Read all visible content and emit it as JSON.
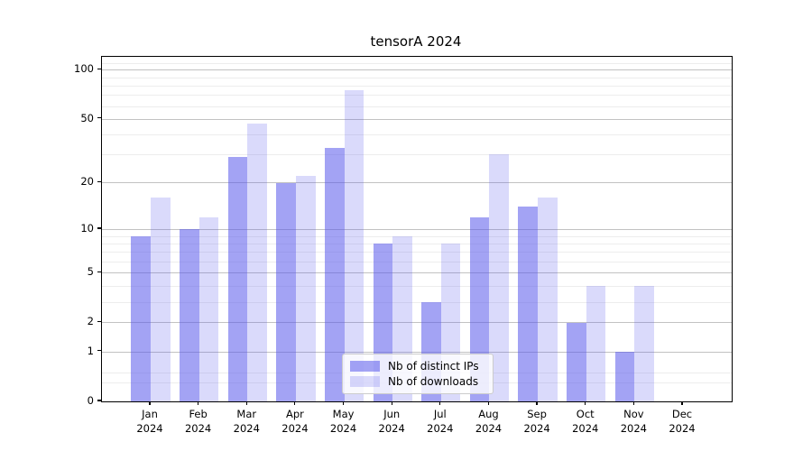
{
  "title": "tensorA 2024",
  "legend": {
    "items": [
      {
        "label": "Nb of distinct IPs",
        "color": "rgba(88,88,235,0.55)",
        "color_hex_on_white": "#a3a3f2"
      },
      {
        "label": "Nb of downloads",
        "color": "rgba(88,88,235,0.22)",
        "color_hex_on_white": "#d9d9f8"
      }
    ]
  },
  "chart_data": {
    "type": "bar",
    "title": "tensorA 2024",
    "categories": [
      "Jan",
      "Feb",
      "Mar",
      "Apr",
      "May",
      "Jun",
      "Jul",
      "Aug",
      "Sep",
      "Oct",
      "Nov",
      "Dec"
    ],
    "year_label": "2024",
    "series": [
      {
        "name": "Nb of distinct IPs",
        "color": "rgba(88,88,235,0.55)",
        "values": [
          9,
          10,
          29,
          20,
          33,
          8,
          3,
          12,
          14,
          2,
          1,
          0
        ]
      },
      {
        "name": "Nb of downloads",
        "color": "rgba(88,88,235,0.22)",
        "values": [
          16,
          12,
          47,
          22,
          75,
          9,
          8,
          30,
          16,
          4,
          4,
          0
        ]
      }
    ],
    "xlabel": "",
    "ylabel": "",
    "yscale": "log1p",
    "ylim": [
      0,
      120
    ],
    "y_major_ticks": [
      0,
      1,
      2,
      5,
      10,
      20,
      50,
      100
    ],
    "y_minor_ticks": [
      0.3,
      0.5,
      3,
      4,
      6,
      7,
      8,
      9,
      30,
      40,
      60,
      70,
      80,
      90,
      110
    ],
    "grid": true,
    "legend_position": "lower center"
  }
}
